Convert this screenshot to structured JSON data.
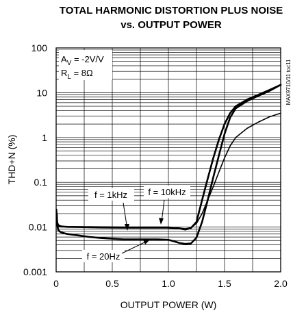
{
  "chart_data": {
    "type": "line",
    "title_line1": "TOTAL HARMONIC DISTORTION PLUS NOISE",
    "title_line2": "vs. OUTPUT POWER",
    "xlabel": "OUTPUT POWER (W)",
    "ylabel": "THD+N (%)",
    "xlim": [
      0,
      2.0
    ],
    "ylim": [
      0.001,
      100
    ],
    "yscale": "log",
    "x_ticks": [
      "0",
      "0.5",
      "1.0",
      "1.5",
      "2.0"
    ],
    "y_ticks": [
      "0.001",
      "0.01",
      "0.1",
      "1",
      "10",
      "100"
    ],
    "grid": true,
    "conditions": {
      "av": "A",
      "av_sub": "V",
      "av_value": " = -2V/V",
      "rl": "R",
      "rl_sub": "L",
      "rl_value": " = 8Ω"
    },
    "part_id": "MAX9710/11 toc11",
    "annotations": {
      "f1k": "f = 1kHz",
      "f10k": "f = 10kHz",
      "f20": "f = 20Hz"
    },
    "series": [
      {
        "name": "f = 1kHz",
        "stroke_width": 2.6,
        "x": [
          0.005,
          0.01,
          0.02,
          0.04,
          0.07,
          0.1,
          0.2,
          0.4,
          0.6,
          0.8,
          1.0,
          1.1,
          1.15,
          1.2,
          1.25,
          1.3,
          1.35,
          1.4,
          1.45,
          1.5,
          1.55,
          1.6,
          1.7,
          1.8,
          1.9,
          2.0
        ],
        "y": [
          0.02,
          0.0125,
          0.0108,
          0.0103,
          0.0102,
          0.0101,
          0.01,
          0.0098,
          0.0097,
          0.0097,
          0.0097,
          0.0093,
          0.0088,
          0.0095,
          0.013,
          0.04,
          0.12,
          0.35,
          0.9,
          2.0,
          3.5,
          5.0,
          7.0,
          9.0,
          11.5,
          15.0
        ]
      },
      {
        "name": "f = 20Hz",
        "stroke_width": 2.6,
        "x": [
          0.005,
          0.01,
          0.02,
          0.04,
          0.07,
          0.1,
          0.2,
          0.3,
          0.4,
          0.5,
          0.6,
          0.7,
          0.8,
          0.9,
          1.0,
          1.05,
          1.1,
          1.15,
          1.2,
          1.25,
          1.3,
          1.35,
          1.4,
          1.45,
          1.5,
          1.55,
          1.6,
          1.7,
          1.8,
          1.9,
          2.0
        ],
        "y": [
          0.02,
          0.011,
          0.0085,
          0.0077,
          0.0073,
          0.007,
          0.0065,
          0.006,
          0.0057,
          0.0055,
          0.0053,
          0.0053,
          0.0053,
          0.0053,
          0.0052,
          0.0048,
          0.0044,
          0.0042,
          0.0043,
          0.0058,
          0.013,
          0.04,
          0.13,
          0.4,
          1.2,
          2.8,
          4.5,
          6.5,
          8.5,
          11.0,
          15.0
        ]
      },
      {
        "name": "f = 10kHz",
        "stroke_width": 1.6,
        "x": [
          0.005,
          0.01,
          0.02,
          0.04,
          0.07,
          0.1,
          0.2,
          0.4,
          0.6,
          0.8,
          1.0,
          1.1,
          1.15,
          1.2,
          1.25,
          1.3,
          1.35,
          1.4,
          1.45,
          1.5,
          1.55,
          1.6,
          1.7,
          1.8,
          1.9,
          2.0
        ],
        "y": [
          0.025,
          0.013,
          0.0112,
          0.0106,
          0.0104,
          0.0103,
          0.0102,
          0.0101,
          0.01,
          0.01,
          0.01,
          0.0095,
          0.0092,
          0.0097,
          0.012,
          0.02,
          0.04,
          0.08,
          0.17,
          0.35,
          0.65,
          1.0,
          1.6,
          2.2,
          2.9,
          3.5
        ]
      }
    ]
  }
}
